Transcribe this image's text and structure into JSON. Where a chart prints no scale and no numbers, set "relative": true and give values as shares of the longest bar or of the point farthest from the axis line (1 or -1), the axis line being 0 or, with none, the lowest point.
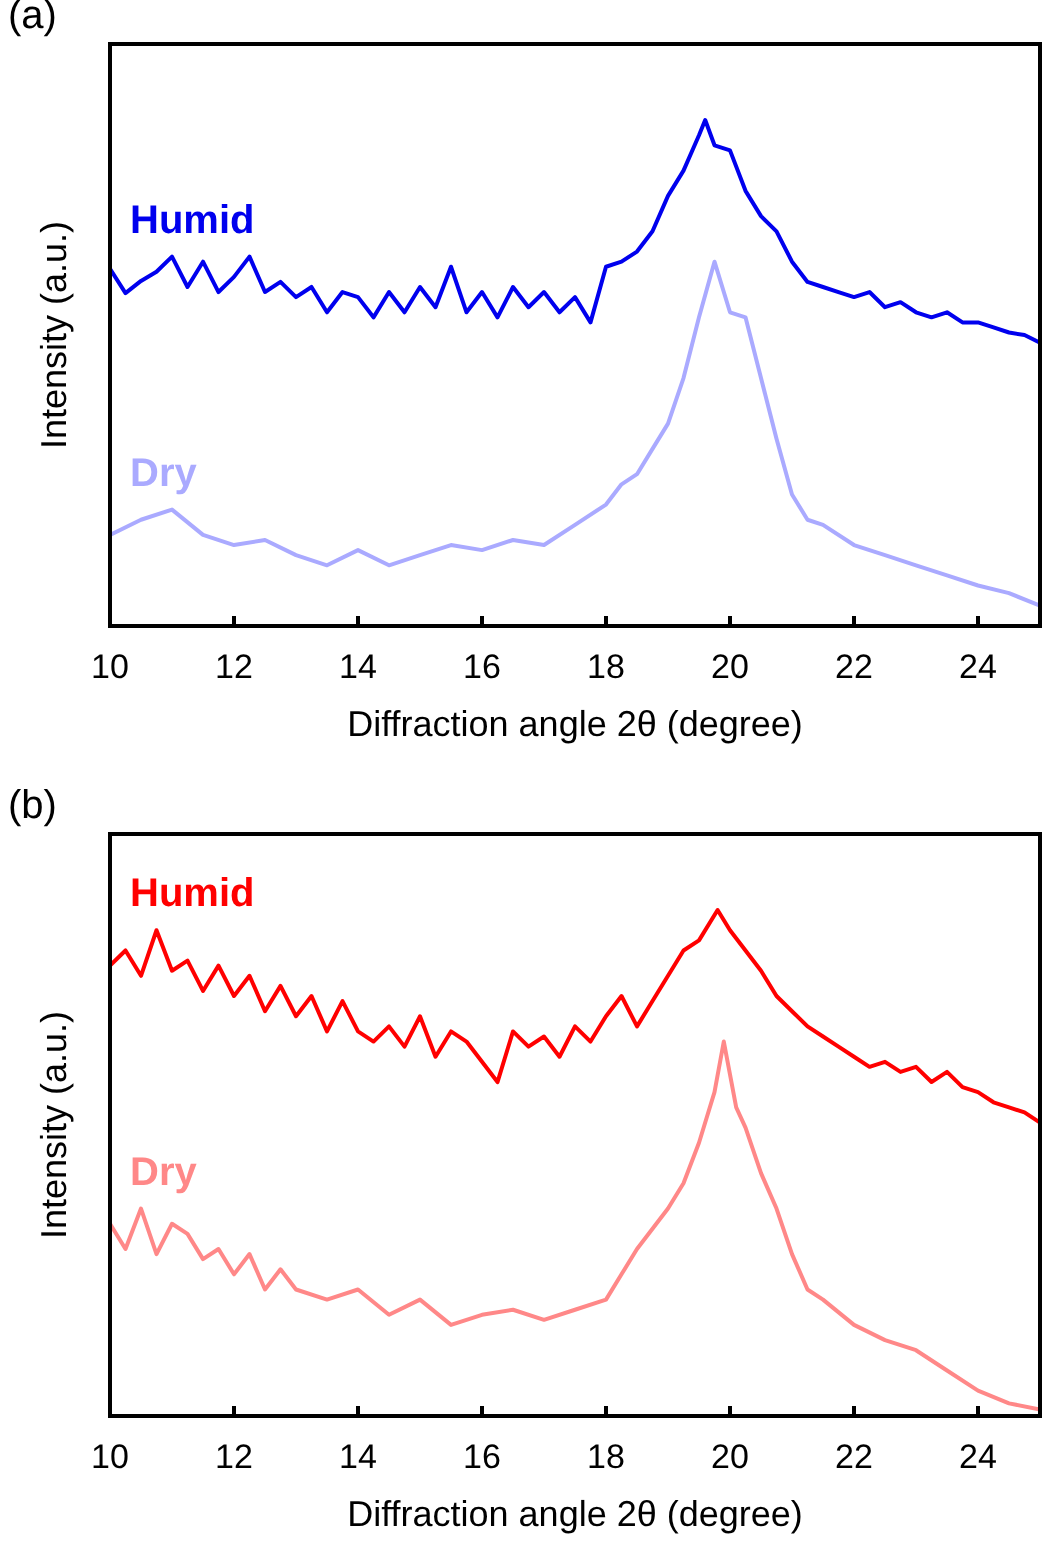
{
  "chart_data": [
    {
      "type": "line",
      "title": "(a)",
      "xlabel": "Diffraction angle 2θ (degree)",
      "ylabel": "Intensity (a.u.)",
      "relative": true,
      "xlim": [
        10,
        25
      ],
      "xticks": [
        10,
        12,
        14,
        16,
        18,
        20,
        22,
        24
      ],
      "tick_labels": "x",
      "series": [
        {
          "name": "Humid",
          "color": "#0000ee",
          "x": [
            10,
            10.25,
            10.5,
            10.75,
            11,
            11.25,
            11.5,
            11.75,
            12,
            12.25,
            12.5,
            12.75,
            13,
            13.25,
            13.5,
            13.75,
            14,
            14.25,
            14.5,
            14.75,
            15,
            15.25,
            15.5,
            15.75,
            16,
            16.25,
            16.5,
            16.75,
            17,
            17.25,
            17.5,
            17.75,
            18,
            18.25,
            18.5,
            18.75,
            19,
            19.25,
            19.5,
            19.6,
            19.75,
            20,
            20.25,
            20.5,
            20.75,
            21,
            21.25,
            21.5,
            21.75,
            22,
            22.25,
            22.5,
            22.75,
            23,
            23.25,
            23.5,
            23.75,
            24,
            24.25,
            24.5,
            24.75,
            25
          ],
          "values": [
            0.706,
            0.658,
            0.682,
            0.7,
            0.73,
            0.67,
            0.72,
            0.66,
            0.69,
            0.73,
            0.66,
            0.68,
            0.65,
            0.67,
            0.62,
            0.66,
            0.65,
            0.61,
            0.66,
            0.62,
            0.67,
            0.63,
            0.71,
            0.62,
            0.66,
            0.61,
            0.67,
            0.63,
            0.66,
            0.62,
            0.65,
            0.6,
            0.71,
            0.72,
            0.74,
            0.78,
            0.85,
            0.9,
            0.97,
            1,
            0.95,
            0.94,
            0.86,
            0.81,
            0.78,
            0.72,
            0.68,
            0.67,
            0.66,
            0.65,
            0.66,
            0.63,
            0.64,
            0.62,
            0.61,
            0.62,
            0.6,
            0.6,
            0.59,
            0.58,
            0.575,
            0.56
          ]
        },
        {
          "name": "Dry",
          "color": "#aaaaff",
          "x": [
            10,
            10.5,
            11,
            11.5,
            12,
            12.5,
            13,
            13.5,
            14,
            14.5,
            15,
            15.5,
            16,
            16.5,
            17,
            17.5,
            18,
            18.25,
            18.5,
            18.75,
            19,
            19.25,
            19.5,
            19.75,
            20,
            20.25,
            20.5,
            20.75,
            21,
            21.25,
            21.5,
            22,
            22.5,
            23,
            23.5,
            24,
            24.5,
            25
          ],
          "values": [
            0.18,
            0.21,
            0.23,
            0.18,
            0.16,
            0.17,
            0.14,
            0.12,
            0.15,
            0.12,
            0.14,
            0.16,
            0.15,
            0.17,
            0.16,
            0.2,
            0.24,
            0.28,
            0.3,
            0.35,
            0.4,
            0.49,
            0.61,
            0.72,
            0.62,
            0.61,
            0.49,
            0.37,
            0.26,
            0.21,
            0.2,
            0.16,
            0.14,
            0.12,
            0.1,
            0.08,
            0.065,
            0.04
          ]
        }
      ]
    },
    {
      "type": "line",
      "title": "(b)",
      "xlabel": "Diffraction angle 2θ (degree)",
      "ylabel": "Intensity (a.u.)",
      "relative": true,
      "xlim": [
        10,
        25
      ],
      "xticks": [
        10,
        12,
        14,
        16,
        18,
        20,
        22,
        24
      ],
      "tick_labels": "x",
      "series": [
        {
          "name": "Humid",
          "color": "#ff0000",
          "x": [
            10,
            10.25,
            10.5,
            10.75,
            11,
            11.25,
            11.5,
            11.75,
            12,
            12.25,
            12.5,
            12.75,
            13,
            13.25,
            13.5,
            13.75,
            14,
            14.25,
            14.5,
            14.75,
            15,
            15.25,
            15.5,
            15.75,
            16,
            16.25,
            16.5,
            16.75,
            17,
            17.25,
            17.5,
            17.75,
            18,
            18.25,
            18.5,
            18.75,
            19,
            19.25,
            19.5,
            19.8,
            20,
            20.25,
            20.5,
            20.75,
            21,
            21.25,
            21.5,
            21.75,
            22,
            22.25,
            22.5,
            22.75,
            23,
            23.25,
            23.5,
            23.75,
            24,
            24.25,
            24.5,
            24.75,
            25
          ],
          "values": [
            0.89,
            0.92,
            0.87,
            0.96,
            0.88,
            0.9,
            0.84,
            0.89,
            0.83,
            0.87,
            0.8,
            0.85,
            0.79,
            0.83,
            0.76,
            0.82,
            0.76,
            0.74,
            0.77,
            0.73,
            0.79,
            0.71,
            0.76,
            0.74,
            0.7,
            0.66,
            0.76,
            0.73,
            0.75,
            0.71,
            0.77,
            0.74,
            0.79,
            0.83,
            0.77,
            0.82,
            0.87,
            0.92,
            0.94,
            1,
            0.96,
            0.92,
            0.88,
            0.83,
            0.8,
            0.77,
            0.75,
            0.73,
            0.71,
            0.69,
            0.7,
            0.68,
            0.69,
            0.66,
            0.68,
            0.65,
            0.64,
            0.62,
            0.61,
            0.6,
            0.58
          ]
        },
        {
          "name": "Dry",
          "color": "#ff8888",
          "x": [
            10,
            10.25,
            10.5,
            10.75,
            11,
            11.25,
            11.5,
            11.75,
            12,
            12.25,
            12.5,
            12.75,
            13,
            13.5,
            14,
            14.5,
            15,
            15.5,
            16,
            16.5,
            17,
            17.5,
            18,
            18.25,
            18.5,
            18.75,
            19,
            19.25,
            19.5,
            19.75,
            19.9,
            20.1,
            20.25,
            20.5,
            20.75,
            21,
            21.25,
            21.5,
            22,
            22.5,
            23,
            23.5,
            24,
            24.5,
            25
          ],
          "values": [
            0.38,
            0.33,
            0.41,
            0.32,
            0.38,
            0.36,
            0.31,
            0.33,
            0.28,
            0.32,
            0.25,
            0.29,
            0.25,
            0.23,
            0.25,
            0.2,
            0.23,
            0.18,
            0.2,
            0.21,
            0.19,
            0.21,
            0.23,
            0.28,
            0.33,
            0.37,
            0.41,
            0.46,
            0.54,
            0.64,
            0.74,
            0.61,
            0.57,
            0.48,
            0.41,
            0.32,
            0.25,
            0.23,
            0.18,
            0.15,
            0.13,
            0.09,
            0.05,
            0.025,
            0.013
          ]
        }
      ]
    }
  ]
}
